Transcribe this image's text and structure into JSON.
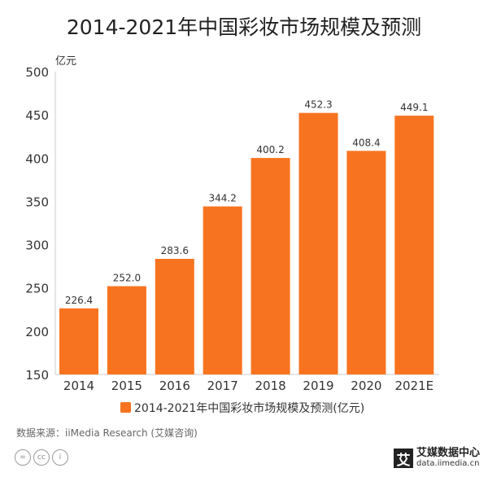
{
  "chart_data": {
    "type": "bar",
    "title": "2014-2021年中国彩妆市场规模及预测",
    "ylabel": "亿元",
    "categories": [
      "2014",
      "2015",
      "2016",
      "2017",
      "2018",
      "2019",
      "2020",
      "2021E"
    ],
    "series": [
      {
        "name": "2014-2021年中国彩妆市场规模及预测(亿元)",
        "values": [
          226.4,
          252.0,
          283.6,
          344.2,
          400.2,
          452.3,
          408.4,
          449.1
        ],
        "labels": [
          "226.4",
          "252.0",
          "283.6",
          "344.2",
          "400.2",
          "452.3",
          "408.4",
          "449.1"
        ]
      }
    ],
    "ylim": [
      150,
      500
    ],
    "yticks": [
      150,
      200,
      250,
      300,
      350,
      400,
      450,
      500
    ],
    "grid": false,
    "legend": "bottom",
    "color": "#F87320"
  },
  "source": "数据来源：iiMedia Research (艾媒咨询)",
  "logo": {
    "name": "艾媒数据中心",
    "url": "data.iimedia.cn",
    "mark": "艾"
  },
  "license_icons": [
    "equals-icon",
    "cc-icon",
    "person-icon"
  ]
}
